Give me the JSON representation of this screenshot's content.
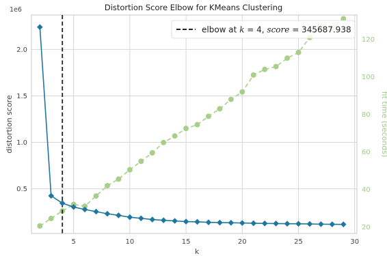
{
  "chart_data": {
    "type": "line",
    "title": "Distortion Score Elbow for KMeans Clustering",
    "xlabel": "k",
    "ylabel": "distortion score",
    "y2label": "fit time (seconds)",
    "y_offset_label": "1e6",
    "xlim": [
      1.25,
      30.2
    ],
    "ylim": [
      0.02,
      2.37
    ],
    "y2lim": [
      16.5,
      133
    ],
    "x_ticks": [
      5,
      10,
      15,
      20,
      25,
      30
    ],
    "y_ticks": [
      0.5,
      1.0,
      1.5,
      2.0
    ],
    "y_tick_labels": [
      "0.5",
      "1.0",
      "1.5",
      "2.0"
    ],
    "y2_ticks": [
      20,
      40,
      60,
      80,
      100,
      120
    ],
    "grid": true,
    "legend_position": "top-right",
    "legend": {
      "label_prefix": "elbow at ",
      "k_symbol": "k",
      "middle": " = 4, ",
      "score_symbol": "score",
      "score_text": " = 345687.938"
    },
    "elbow": {
      "k": 4,
      "score": 345687.938
    },
    "series": [
      {
        "name": "distortion score",
        "axis": "left",
        "x": [
          2,
          3,
          4,
          5,
          6,
          7,
          8,
          9,
          10,
          11,
          12,
          13,
          14,
          15,
          16,
          17,
          18,
          19,
          20,
          21,
          22,
          23,
          24,
          25,
          26,
          27,
          28,
          29
        ],
        "values": [
          2.24,
          0.425,
          0.346,
          0.305,
          0.278,
          0.255,
          0.232,
          0.215,
          0.195,
          0.183,
          0.17,
          0.162,
          0.155,
          0.148,
          0.145,
          0.14,
          0.137,
          0.135,
          0.133,
          0.13,
          0.128,
          0.127,
          0.125,
          0.124,
          0.122,
          0.12,
          0.119,
          0.118
        ]
      },
      {
        "name": "fit time (seconds)",
        "axis": "right",
        "x": [
          2,
          3,
          4,
          5,
          6,
          7,
          8,
          9,
          10,
          11,
          12,
          13,
          14,
          15,
          16,
          17,
          18,
          19,
          20,
          21,
          22,
          23,
          24,
          25,
          26,
          27,
          28,
          29
        ],
        "values": [
          20.5,
          24.5,
          28.5,
          32,
          31,
          36.5,
          42,
          45.5,
          50.5,
          55,
          59.5,
          65,
          68.5,
          72.5,
          74.5,
          79,
          83,
          88,
          92,
          101,
          104,
          105.5,
          110,
          113,
          121,
          127,
          126,
          131
        ]
      }
    ],
    "colors": {
      "distortion": "#1f77a0",
      "fit_time": "#a8cf8a",
      "elbow_line": "#222222",
      "grid": "#d6d6d6",
      "frame": "#c4c4c4",
      "tick_text": "#444444",
      "right_axis_text": "#9ec98a"
    }
  }
}
